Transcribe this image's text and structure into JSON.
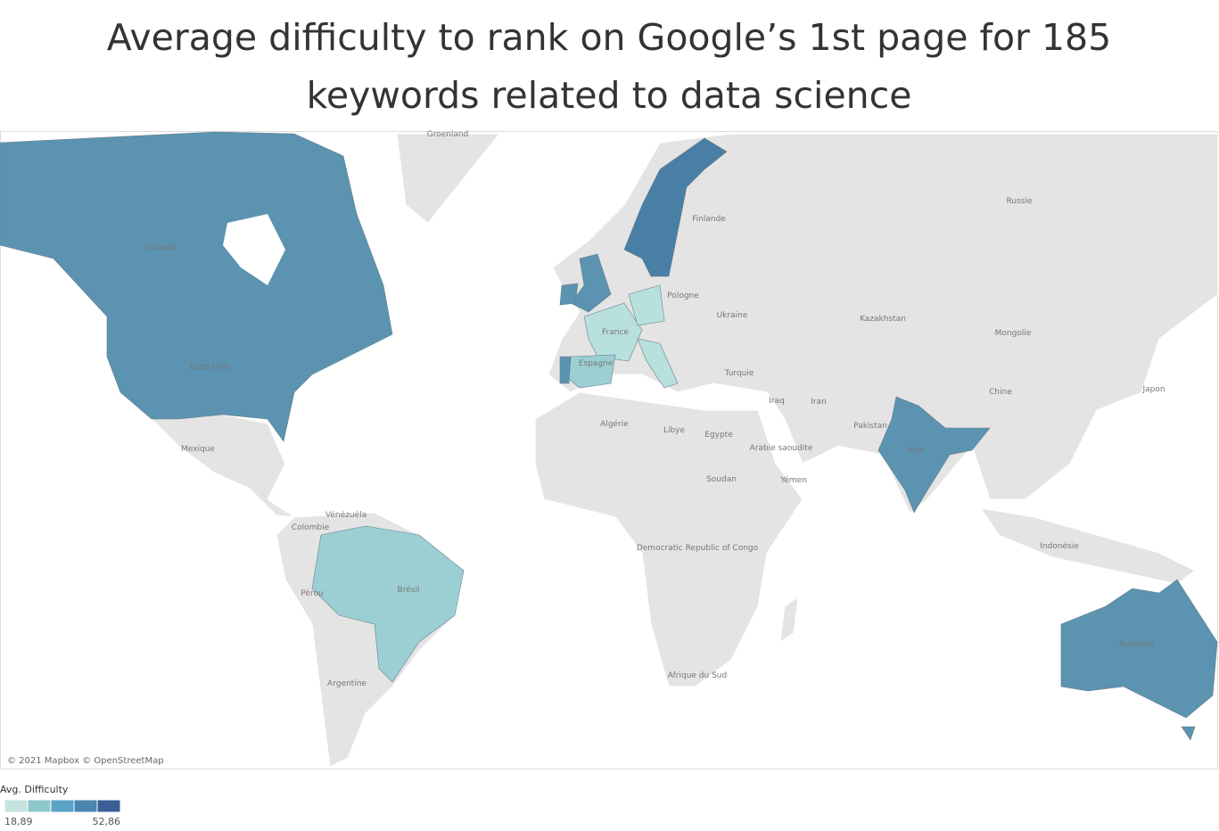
{
  "title_lines": [
    "Average difficulty to rank on Google’s 1st page for 185",
    "keywords related to data science"
  ],
  "map_labels": [
    "Groenland",
    "Russie",
    "Finlande",
    "Canada",
    "Pologne",
    "Ukraine",
    "Kazakhstan",
    "Mongolie",
    "Etats-Unis",
    "France",
    "Espagne",
    "Turquie",
    "Iraq",
    "Iran",
    "Chine",
    "Japon",
    "Algérie",
    "Libye",
    "Egypte",
    "Arabie saoudite",
    "Pakistan",
    "Mexique",
    "Soudan",
    "Yémen",
    "Inde",
    "Vénézuéla",
    "Colombie",
    "Democratic Republic of Congo",
    "Pérou",
    "Brésil",
    "Indonésie",
    "Australie",
    "Argentine",
    "Afrique du Sud"
  ],
  "attribution": "© 2021 Mapbox © OpenStreetMap",
  "legend": {
    "title": "Avg. Difficulty",
    "colors": [
      "#c5e3df",
      "#8ec8cd",
      "#5aa3c6",
      "#4a86b0",
      "#3a5f96"
    ],
    "min": {
      "value": 18.89,
      "label": "18,89"
    },
    "max": {
      "value": 52.86,
      "label": "52,86"
    }
  }
}
